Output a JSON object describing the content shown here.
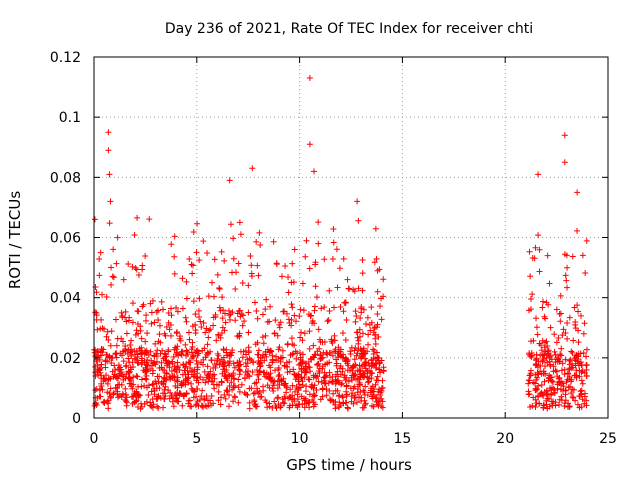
{
  "chart_data": {
    "type": "scatter",
    "title": "Day 236 of 2021, Rate Of TEC Index for receiver chti",
    "xlabel": "GPS time / hours",
    "ylabel": "ROTI / TECUs",
    "xlim": [
      0,
      25
    ],
    "ylim": [
      0,
      0.12
    ],
    "xticks": [
      0,
      5,
      10,
      15,
      20,
      25
    ],
    "yticks": [
      0,
      0.02,
      0.04,
      0.06,
      0.08,
      0.1,
      0.12
    ],
    "xtick_labels": [
      "0",
      "5",
      "10",
      "15",
      "20",
      "25"
    ],
    "ytick_labels": [
      "0",
      "0.02",
      "0.04",
      "0.06",
      "0.08",
      "0.1",
      "0.12"
    ],
    "grid": true,
    "marker": "+",
    "color": "#ff0000",
    "segments": [
      {
        "x_start": 0.0,
        "x_end": 14.1
      },
      {
        "x_start": 21.1,
        "x_end": 24.0
      }
    ],
    "notable_points": [
      {
        "x": 0.7,
        "y": 0.095
      },
      {
        "x": 0.7,
        "y": 0.089
      },
      {
        "x": 0.75,
        "y": 0.081
      },
      {
        "x": 0.8,
        "y": 0.072
      },
      {
        "x": 6.6,
        "y": 0.079
      },
      {
        "x": 7.7,
        "y": 0.083
      },
      {
        "x": 10.5,
        "y": 0.113
      },
      {
        "x": 10.5,
        "y": 0.091
      },
      {
        "x": 10.7,
        "y": 0.082
      },
      {
        "x": 12.8,
        "y": 0.072
      },
      {
        "x": 22.9,
        "y": 0.094
      },
      {
        "x": 22.9,
        "y": 0.085
      },
      {
        "x": 21.6,
        "y": 0.081
      },
      {
        "x": 23.5,
        "y": 0.075
      }
    ],
    "typical_level": 0.012
  }
}
